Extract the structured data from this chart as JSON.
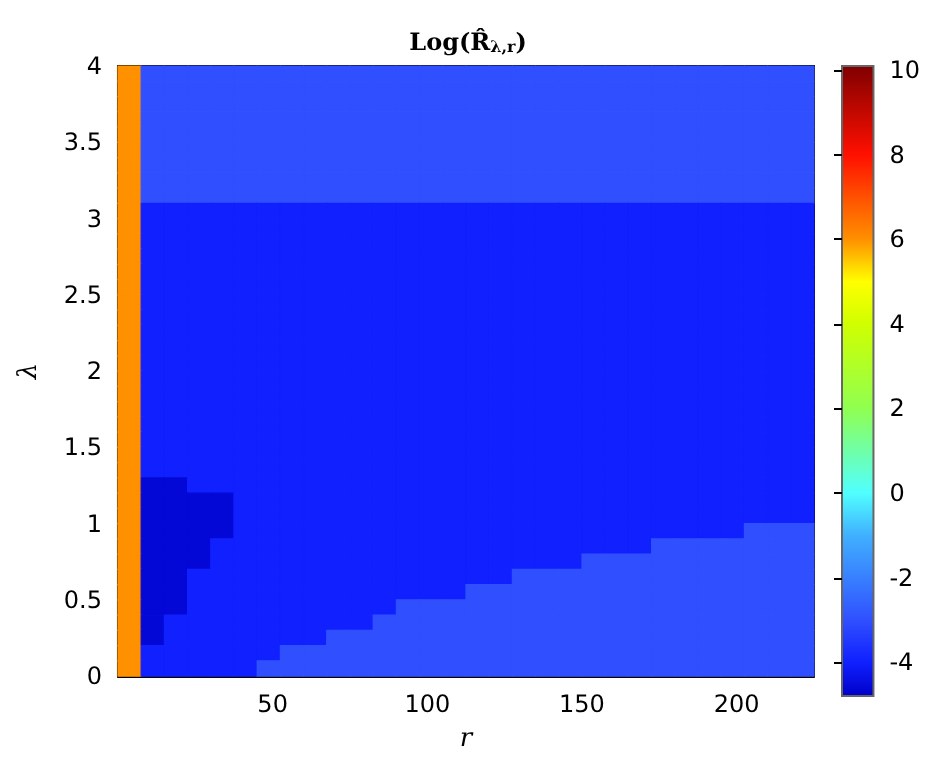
{
  "chart_data": {
    "type": "heatmap",
    "title": "Log(R̂$_{λ,r}$)",
    "xlabel": "r",
    "ylabel": "λ",
    "x": [
      3.75,
      11.25,
      18.75,
      26.25,
      33.75,
      41.25,
      48.75,
      56.25,
      63.75,
      71.25,
      78.75,
      86.25,
      93.75,
      101.25,
      108.75,
      116.25,
      123.75,
      131.25,
      138.75,
      146.25,
      153.75,
      161.25,
      168.75,
      176.25,
      183.75,
      191.25,
      198.75,
      206.25,
      213.75,
      221.25
    ],
    "y": [
      3.95,
      3.85,
      3.75,
      3.65,
      3.55,
      3.45,
      3.35,
      3.25,
      3.15,
      3.05,
      2.95,
      2.85,
      2.75,
      2.65,
      2.55,
      2.45,
      2.35,
      2.25,
      2.15,
      2.05,
      1.95,
      1.85,
      1.75,
      1.65,
      1.55,
      1.45,
      1.35,
      1.25,
      1.15,
      1.05,
      0.95,
      0.85,
      0.75,
      0.65,
      0.55,
      0.45,
      0.35,
      0.25,
      0.15,
      0.05
    ],
    "xlim": [
      0,
      225
    ],
    "xticks": [
      50,
      100,
      150,
      200
    ],
    "ylim": [
      0,
      4
    ],
    "yticks": [
      0,
      0.5,
      1,
      1.5,
      2,
      2.5,
      3,
      3.5,
      4
    ],
    "clim": [
      -4.8,
      10.1
    ],
    "cticks": [
      -4,
      -2,
      0,
      2,
      4,
      6,
      8,
      10
    ],
    "cells": [
      [
        6,
        -3,
        -3,
        -3,
        -3,
        -3,
        -3,
        -3,
        -3,
        -3,
        -3,
        -3,
        -3,
        -3,
        -3,
        -3,
        -3,
        -3,
        -3,
        -3,
        -3,
        -3,
        -3,
        -3,
        -3,
        -3,
        -3,
        -3,
        -3,
        -3
      ],
      [
        6,
        -3,
        -3,
        -3,
        -3,
        -3,
        -3,
        -3,
        -3,
        -3,
        -3,
        -3,
        -3,
        -3,
        -3,
        -3,
        -3,
        -3,
        -3,
        -3,
        -3,
        -3,
        -3,
        -3,
        -3,
        -3,
        -3,
        -3,
        -3,
        -3
      ],
      [
        6,
        -3,
        -3,
        -3,
        -3,
        -3,
        -3,
        -3,
        -3,
        -3,
        -3,
        -3,
        -3,
        -3,
        -3,
        -3,
        -3,
        -3,
        -3,
        -3,
        -3,
        -3,
        -3,
        -3,
        -3,
        -3,
        -3,
        -3,
        -3,
        -3
      ],
      [
        6,
        -3,
        -3,
        -3,
        -3,
        -3,
        -3,
        -3,
        -3,
        -3,
        -3,
        -3,
        -3,
        -3,
        -3,
        -3,
        -3,
        -3,
        -3,
        -3,
        -3,
        -3,
        -3,
        -3,
        -3,
        -3,
        -3,
        -3,
        -3,
        -3
      ],
      [
        6,
        -3,
        -3,
        -3,
        -3,
        -3,
        -3,
        -3,
        -3,
        -3,
        -3,
        -3,
        -3,
        -3,
        -3,
        -3,
        -3,
        -3,
        -3,
        -3,
        -3,
        -3,
        -3,
        -3,
        -3,
        -3,
        -3,
        -3,
        -3,
        -3
      ],
      [
        6,
        -3,
        -3,
        -3,
        -3,
        -3,
        -3,
        -3,
        -3,
        -3,
        -3,
        -3,
        -3,
        -3,
        -3,
        -3,
        -3,
        -3,
        -3,
        -3,
        -3,
        -3,
        -3,
        -3,
        -3,
        -3,
        -3,
        -3,
        -3,
        -3
      ],
      [
        6,
        -3,
        -3,
        -3,
        -3,
        -3,
        -3,
        -3,
        -3,
        -3,
        -3,
        -3,
        -3,
        -3,
        -3,
        -3,
        -3,
        -3,
        -3,
        -3,
        -3,
        -3,
        -3,
        -3,
        -3,
        -3,
        -3,
        -3,
        -3,
        -3
      ],
      [
        6,
        -3,
        -3,
        -3,
        -3,
        -3,
        -3,
        -3,
        -3,
        -3,
        -3,
        -3,
        -3,
        -3,
        -3,
        -3,
        -3,
        -3,
        -3,
        -3,
        -3,
        -3,
        -3,
        -3,
        -3,
        -3,
        -3,
        -3,
        -3,
        -3
      ],
      [
        6,
        -3,
        -3,
        -3,
        -3,
        -3,
        -3,
        -3,
        -3,
        -3,
        -3,
        -3,
        -3,
        -3,
        -3,
        -3,
        -3,
        -3,
        -3,
        -3,
        -3,
        -3,
        -3,
        -3,
        -3,
        -3,
        -3,
        -3,
        -3,
        -3
      ],
      [
        6,
        -4,
        -4,
        -4,
        -4,
        -4,
        -4,
        -4,
        -4,
        -4,
        -4,
        -4,
        -4,
        -4,
        -4,
        -4,
        -4,
        -4,
        -4,
        -4,
        -4,
        -4,
        -4,
        -4,
        -4,
        -4,
        -4,
        -4,
        -4,
        -4
      ],
      [
        6,
        -4,
        -4,
        -4,
        -4,
        -4,
        -4,
        -4,
        -4,
        -4,
        -4,
        -4,
        -4,
        -4,
        -4,
        -4,
        -4,
        -4,
        -4,
        -4,
        -4,
        -4,
        -4,
        -4,
        -4,
        -4,
        -4,
        -4,
        -4,
        -4
      ],
      [
        6,
        -4,
        -4,
        -4,
        -4,
        -4,
        -4,
        -4,
        -4,
        -4,
        -4,
        -4,
        -4,
        -4,
        -4,
        -4,
        -4,
        -4,
        -4,
        -4,
        -4,
        -4,
        -4,
        -4,
        -4,
        -4,
        -4,
        -4,
        -4,
        -4
      ],
      [
        6,
        -4,
        -4,
        -4,
        -4,
        -4,
        -4,
        -4,
        -4,
        -4,
        -4,
        -4,
        -4,
        -4,
        -4,
        -4,
        -4,
        -4,
        -4,
        -4,
        -4,
        -4,
        -4,
        -4,
        -4,
        -4,
        -4,
        -4,
        -4,
        -4
      ],
      [
        6,
        -4,
        -4,
        -4,
        -4,
        -4,
        -4,
        -4,
        -4,
        -4,
        -4,
        -4,
        -4,
        -4,
        -4,
        -4,
        -4,
        -4,
        -4,
        -4,
        -4,
        -4,
        -4,
        -4,
        -4,
        -4,
        -4,
        -4,
        -4,
        -4
      ],
      [
        6,
        -4,
        -4,
        -4,
        -4,
        -4,
        -4,
        -4,
        -4,
        -4,
        -4,
        -4,
        -4,
        -4,
        -4,
        -4,
        -4,
        -4,
        -4,
        -4,
        -4,
        -4,
        -4,
        -4,
        -4,
        -4,
        -4,
        -4,
        -4,
        -4
      ],
      [
        6,
        -4,
        -4,
        -4,
        -4,
        -4,
        -4,
        -4,
        -4,
        -4,
        -4,
        -4,
        -4,
        -4,
        -4,
        -4,
        -4,
        -4,
        -4,
        -4,
        -4,
        -4,
        -4,
        -4,
        -4,
        -4,
        -4,
        -4,
        -4,
        -4
      ],
      [
        6,
        -4,
        -4,
        -4,
        -4,
        -4,
        -4,
        -4,
        -4,
        -4,
        -4,
        -4,
        -4,
        -4,
        -4,
        -4,
        -4,
        -4,
        -4,
        -4,
        -4,
        -4,
        -4,
        -4,
        -4,
        -4,
        -4,
        -4,
        -4,
        -4
      ],
      [
        6,
        -4,
        -4,
        -4,
        -4,
        -4,
        -4,
        -4,
        -4,
        -4,
        -4,
        -4,
        -4,
        -4,
        -4,
        -4,
        -4,
        -4,
        -4,
        -4,
        -4,
        -4,
        -4,
        -4,
        -4,
        -4,
        -4,
        -4,
        -4,
        -4
      ],
      [
        6,
        -4,
        -4,
        -4,
        -4,
        -4,
        -4,
        -4,
        -4,
        -4,
        -4,
        -4,
        -4,
        -4,
        -4,
        -4,
        -4,
        -4,
        -4,
        -4,
        -4,
        -4,
        -4,
        -4,
        -4,
        -4,
        -4,
        -4,
        -4,
        -4
      ],
      [
        6,
        -4,
        -4,
        -4,
        -4,
        -4,
        -4,
        -4,
        -4,
        -4,
        -4,
        -4,
        -4,
        -4,
        -4,
        -4,
        -4,
        -4,
        -4,
        -4,
        -4,
        -4,
        -4,
        -4,
        -4,
        -4,
        -4,
        -4,
        -4,
        -4
      ],
      [
        6,
        -4,
        -4,
        -4,
        -4,
        -4,
        -4,
        -4,
        -4,
        -4,
        -4,
        -4,
        -4,
        -4,
        -4,
        -4,
        -4,
        -4,
        -4,
        -4,
        -4,
        -4,
        -4,
        -4,
        -4,
        -4,
        -4,
        -4,
        -4,
        -4
      ],
      [
        6,
        -4,
        -4,
        -4,
        -4,
        -4,
        -4,
        -4,
        -4,
        -4,
        -4,
        -4,
        -4,
        -4,
        -4,
        -4,
        -4,
        -4,
        -4,
        -4,
        -4,
        -4,
        -4,
        -4,
        -4,
        -4,
        -4,
        -4,
        -4,
        -4
      ],
      [
        6,
        -4,
        -4,
        -4,
        -4,
        -4,
        -4,
        -4,
        -4,
        -4,
        -4,
        -4,
        -4,
        -4,
        -4,
        -4,
        -4,
        -4,
        -4,
        -4,
        -4,
        -4,
        -4,
        -4,
        -4,
        -4,
        -4,
        -4,
        -4,
        -4
      ],
      [
        6,
        -4,
        -4,
        -4,
        -4,
        -4,
        -4,
        -4,
        -4,
        -4,
        -4,
        -4,
        -4,
        -4,
        -4,
        -4,
        -4,
        -4,
        -4,
        -4,
        -4,
        -4,
        -4,
        -4,
        -4,
        -4,
        -4,
        -4,
        -4,
        -4
      ],
      [
        6,
        -4,
        -4,
        -4,
        -4,
        -4,
        -4,
        -4,
        -4,
        -4,
        -4,
        -4,
        -4,
        -4,
        -4,
        -4,
        -4,
        -4,
        -4,
        -4,
        -4,
        -4,
        -4,
        -4,
        -4,
        -4,
        -4,
        -4,
        -4,
        -4
      ],
      [
        6,
        -4,
        -4,
        -4,
        -4,
        -4,
        -4,
        -4,
        -4,
        -4,
        -4,
        -4,
        -4,
        -4,
        -4,
        -4,
        -4,
        -4,
        -4,
        -4,
        -4,
        -4,
        -4,
        -4,
        -4,
        -4,
        -4,
        -4,
        -4,
        -4
      ],
      [
        6,
        -4,
        -4,
        -4,
        -4,
        -4,
        -4,
        -4,
        -4,
        -4,
        -4,
        -4,
        -4,
        -4,
        -4,
        -4,
        -4,
        -4,
        -4,
        -4,
        -4,
        -4,
        -4,
        -4,
        -4,
        -4,
        -4,
        -4,
        -4,
        -4
      ],
      [
        6,
        -4.6,
        -4.6,
        -4,
        -4,
        -4,
        -4,
        -4,
        -4,
        -4,
        -4,
        -4,
        -4,
        -4,
        -4,
        -4,
        -4,
        -4,
        -4,
        -4,
        -4,
        -4,
        -4,
        -4,
        -4,
        -4,
        -4,
        -4,
        -4,
        -4
      ],
      [
        6,
        -4.6,
        -4.6,
        -4.6,
        -4.6,
        -4,
        -4,
        -4,
        -4,
        -4,
        -4,
        -4,
        -4,
        -4,
        -4,
        -4,
        -4,
        -4,
        -4,
        -4,
        -4,
        -4,
        -4,
        -4,
        -4,
        -4,
        -4,
        -4,
        -4,
        -4
      ],
      [
        6,
        -4.6,
        -4.6,
        -4.6,
        -4.6,
        -4,
        -4,
        -4,
        -4,
        -4,
        -4,
        -4,
        -4,
        -4,
        -4,
        -4,
        -4,
        -4,
        -4,
        -4,
        -4,
        -4,
        -4,
        -4,
        -4,
        -4,
        -4,
        -4,
        -4,
        -4
      ],
      [
        6,
        -4.6,
        -4.6,
        -4.6,
        -4.6,
        -4,
        -4,
        -4,
        -4,
        -4,
        -4,
        -4,
        -4,
        -4,
        -4,
        -4,
        -4,
        -4,
        -4,
        -4,
        -4,
        -4,
        -4,
        -4,
        -4,
        -4,
        -4,
        -3,
        -3,
        -3
      ],
      [
        6,
        -4.6,
        -4.6,
        -4.6,
        -4,
        -4,
        -4,
        -4,
        -4,
        -4,
        -4,
        -4,
        -4,
        -4,
        -4,
        -4,
        -4,
        -4,
        -4,
        -4,
        -4,
        -4,
        -4,
        -3,
        -3,
        -3,
        -3,
        -3,
        -3,
        -3
      ],
      [
        6,
        -4.6,
        -4.6,
        -4.6,
        -4,
        -4,
        -4,
        -4,
        -4,
        -4,
        -4,
        -4,
        -4,
        -4,
        -4,
        -4,
        -4,
        -4,
        -4,
        -4,
        -3,
        -3,
        -3,
        -3,
        -3,
        -3,
        -3,
        -3,
        -3,
        -3
      ],
      [
        6,
        -4.6,
        -4.6,
        -4,
        -4,
        -4,
        -4,
        -4,
        -4,
        -4,
        -4,
        -4,
        -4,
        -4,
        -4,
        -4,
        -4,
        -3,
        -3,
        -3,
        -3,
        -3,
        -3,
        -3,
        -3,
        -3,
        -3,
        -3,
        -3,
        -3
      ],
      [
        6,
        -4.6,
        -4.6,
        -4,
        -4,
        -4,
        -4,
        -4,
        -4,
        -4,
        -4,
        -4,
        -4,
        -4,
        -4,
        -3,
        -3,
        -3,
        -3,
        -3,
        -3,
        -3,
        -3,
        -3,
        -3,
        -3,
        -3,
        -3,
        -3,
        -3
      ],
      [
        6,
        -4.6,
        -4.6,
        -4,
        -4,
        -4,
        -4,
        -4,
        -4,
        -4,
        -4,
        -4,
        -3,
        -3,
        -3,
        -3,
        -3,
        -3,
        -3,
        -3,
        -3,
        -3,
        -3,
        -3,
        -3,
        -3,
        -3,
        -3,
        -3,
        -3
      ],
      [
        6,
        -4.6,
        -4,
        -4,
        -4,
        -4,
        -4,
        -4,
        -4,
        -4,
        -4,
        -3,
        -3,
        -3,
        -3,
        -3,
        -3,
        -3,
        -3,
        -3,
        -3,
        -3,
        -3,
        -3,
        -3,
        -3,
        -3,
        -3,
        -3,
        -3
      ],
      [
        6,
        -4.6,
        -4,
        -4,
        -4,
        -4,
        -4,
        -4,
        -4,
        -3,
        -3,
        -3,
        -3,
        -3,
        -3,
        -3,
        -3,
        -3,
        -3,
        -3,
        -3,
        -3,
        -3,
        -3,
        -3,
        -3,
        -3,
        -3,
        -3,
        -3
      ],
      [
        6,
        -4,
        -4,
        -4,
        -4,
        -4,
        -4,
        -3,
        -3,
        -3,
        -3,
        -3,
        -3,
        -3,
        -3,
        -3,
        -3,
        -3,
        -3,
        -3,
        -3,
        -3,
        -3,
        -3,
        -3,
        -3,
        -3,
        -3,
        -3,
        -3
      ],
      [
        6,
        -4,
        -4,
        -4,
        -4,
        -4,
        -3,
        -3,
        -3,
        -3,
        -3,
        -3,
        -3,
        -3,
        -3,
        -3,
        -3,
        -3,
        -3,
        -3,
        -3,
        -3,
        -3,
        -3,
        -3,
        -3,
        -3,
        -3,
        -3,
        -3
      ]
    ]
  }
}
